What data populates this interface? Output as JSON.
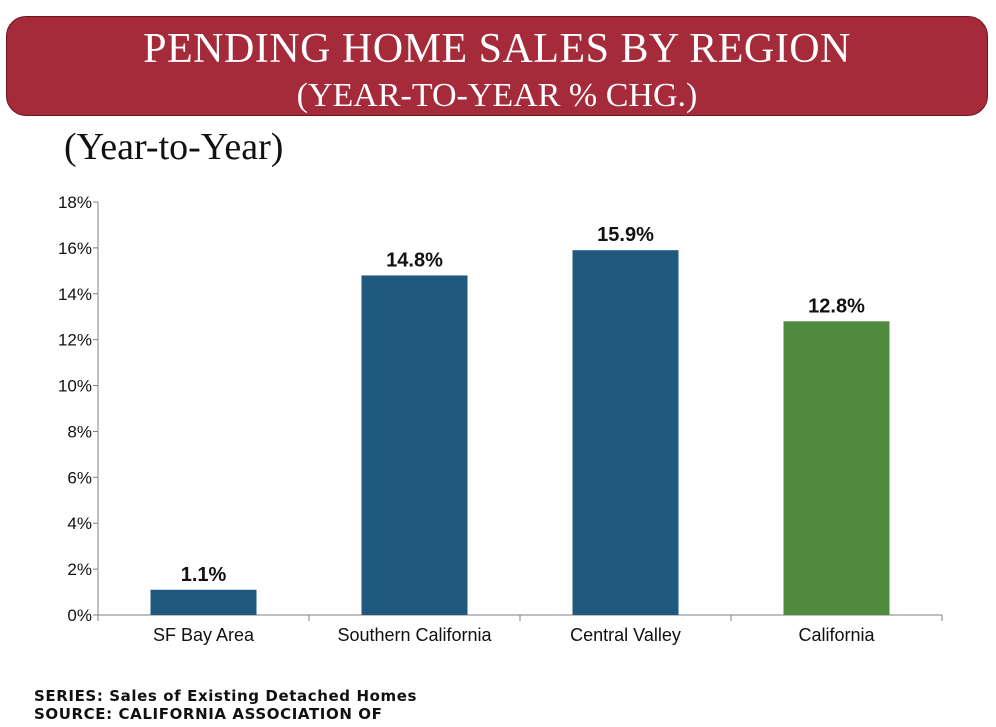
{
  "header": {
    "title": "PENDING HOME SALES BY REGION",
    "subtitle": "(YEAR-TO-YEAR % CHG.)",
    "color": "#a52a3a"
  },
  "chart_subtitle": "(Year-to-Year)",
  "chart_data": {
    "type": "bar",
    "categories": [
      "SF Bay Area",
      "Southern California",
      "Central Valley",
      "California"
    ],
    "values": [
      1.1,
      14.8,
      15.9,
      12.8
    ],
    "data_labels": [
      "1.1%",
      "14.8%",
      "15.9%",
      "12.8%"
    ],
    "bar_colors": [
      "#1f5a7e",
      "#1f5a7e",
      "#1f5a7e",
      "#4f8a3e"
    ],
    "ylim": [
      0,
      18
    ],
    "y_ticks": [
      0,
      2,
      4,
      6,
      8,
      10,
      12,
      14,
      16,
      18
    ],
    "y_tick_labels": [
      "0%",
      "2%",
      "4%",
      "6%",
      "8%",
      "10%",
      "12%",
      "14%",
      "16%",
      "18%"
    ],
    "grid": false,
    "legend": "none"
  },
  "footer": {
    "series": "SERIES: Sales of Existing Detached Homes",
    "source": "SOURCE:  CALIFORNIA ASSOCIATION OF"
  }
}
